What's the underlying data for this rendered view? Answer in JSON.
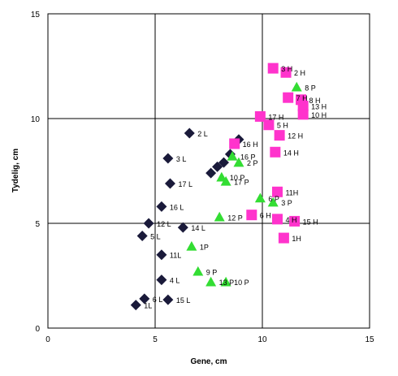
{
  "chart_data": {
    "type": "scatter",
    "xlabel": "Gene, cm",
    "ylabel": "Tydelig, cm",
    "xlim": [
      0,
      15
    ],
    "ylim": [
      0,
      15
    ],
    "xticks": [
      "0",
      "5",
      "10",
      "15"
    ],
    "yticks": [
      "0",
      "5",
      "10",
      "15"
    ],
    "grid": true,
    "legend": "none",
    "series": [
      {
        "marker": "diamond",
        "color": "#1a1a3a",
        "points": [
          {
            "x": 6.6,
            "y": 9.3,
            "label": "2 L"
          },
          {
            "x": 5.6,
            "y": 8.1,
            "label": "3 L"
          },
          {
            "x": 8.9,
            "y": 9.0,
            "label": ""
          },
          {
            "x": 8.5,
            "y": 8.3,
            "label": ""
          },
          {
            "x": 8.2,
            "y": 7.9,
            "label": ""
          },
          {
            "x": 7.9,
            "y": 7.7,
            "label": ""
          },
          {
            "x": 7.6,
            "y": 7.4,
            "label": ""
          },
          {
            "x": 5.7,
            "y": 6.9,
            "label": "17 L"
          },
          {
            "x": 5.3,
            "y": 5.8,
            "label": "16 L"
          },
          {
            "x": 4.7,
            "y": 5.0,
            "label": "12 L"
          },
          {
            "x": 6.3,
            "y": 4.8,
            "label": "14 L"
          },
          {
            "x": 4.4,
            "y": 4.4,
            "label": "5 L"
          },
          {
            "x": 5.3,
            "y": 3.5,
            "label": "11L"
          },
          {
            "x": 5.3,
            "y": 2.3,
            "label": "4 L"
          },
          {
            "x": 4.5,
            "y": 1.4,
            "label": "6 L"
          },
          {
            "x": 4.1,
            "y": 1.1,
            "label": "1L"
          },
          {
            "x": 5.6,
            "y": 1.35,
            "label": "15 L"
          }
        ]
      },
      {
        "marker": "triangle",
        "color": "#33dd33",
        "points": [
          {
            "x": 11.6,
            "y": 11.5,
            "label": "8 P"
          },
          {
            "x": 8.6,
            "y": 8.2,
            "label": "16 P"
          },
          {
            "x": 8.9,
            "y": 7.9,
            "label": "2 P"
          },
          {
            "x": 8.1,
            "y": 7.2,
            "label": "10 P"
          },
          {
            "x": 8.3,
            "y": 7.0,
            "label": "17 P"
          },
          {
            "x": 9.9,
            "y": 6.2,
            "label": "6 P"
          },
          {
            "x": 10.5,
            "y": 6.0,
            "label": "3 P"
          },
          {
            "x": 8.0,
            "y": 5.3,
            "label": "12 P"
          },
          {
            "x": 6.7,
            "y": 3.9,
            "label": "1P"
          },
          {
            "x": 7.0,
            "y": 2.7,
            "label": "9 P"
          },
          {
            "x": 7.6,
            "y": 2.2,
            "label": "13 P"
          },
          {
            "x": 8.3,
            "y": 2.2,
            "label": "10 P"
          }
        ]
      },
      {
        "marker": "square",
        "color": "#ff33cc",
        "points": [
          {
            "x": 10.5,
            "y": 12.4,
            "label": "3 H"
          },
          {
            "x": 11.1,
            "y": 12.2,
            "label": "2 H"
          },
          {
            "x": 11.2,
            "y": 11.0,
            "label": "7 H"
          },
          {
            "x": 11.8,
            "y": 10.9,
            "label": "8 H"
          },
          {
            "x": 11.9,
            "y": 10.6,
            "label": "13 H"
          },
          {
            "x": 11.9,
            "y": 10.2,
            "label": "10 H"
          },
          {
            "x": 9.9,
            "y": 10.1,
            "label": "17 H"
          },
          {
            "x": 10.3,
            "y": 9.7,
            "label": "5 H"
          },
          {
            "x": 10.8,
            "y": 9.2,
            "label": "12 H"
          },
          {
            "x": 8.7,
            "y": 8.8,
            "label": "16 H"
          },
          {
            "x": 10.6,
            "y": 8.4,
            "label": "14 H"
          },
          {
            "x": 10.7,
            "y": 6.5,
            "label": "11H"
          },
          {
            "x": 9.5,
            "y": 5.4,
            "label": "6 H"
          },
          {
            "x": 10.7,
            "y": 5.2,
            "label": "4 H"
          },
          {
            "x": 11.5,
            "y": 5.1,
            "label": "15 H"
          },
          {
            "x": 11.0,
            "y": 4.3,
            "label": "1H"
          }
        ]
      }
    ]
  }
}
